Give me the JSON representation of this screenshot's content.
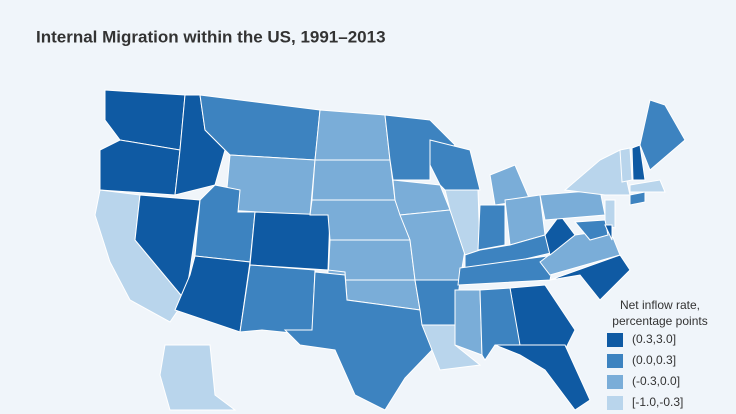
{
  "title": "Internal Migration within the US, 1991–2013",
  "legend": {
    "title_lines": [
      "Net inflow rate,",
      "percentage points"
    ],
    "items": [
      {
        "label": "(0.3,3.0]",
        "color": "#0f5aa3"
      },
      {
        "label": "(0.0,0.3]",
        "color": "#3d83c0"
      },
      {
        "label": "(-0.3,0.0]",
        "color": "#7aadd8"
      },
      {
        "label": "[-1.0,-0.3]",
        "color": "#b9d5ec"
      }
    ]
  },
  "regions": [
    0,
    0,
    3,
    0,
    0,
    1,
    2,
    1,
    0,
    0,
    1,
    2,
    2,
    2,
    2,
    2,
    1,
    1,
    2,
    2,
    1,
    3,
    1,
    3,
    2,
    1,
    2,
    1,
    2,
    1,
    0,
    0,
    1,
    0,
    2,
    0,
    2,
    3,
    3,
    1,
    0,
    1,
    3,
    3,
    0,
    1,
    3
  ]
}
